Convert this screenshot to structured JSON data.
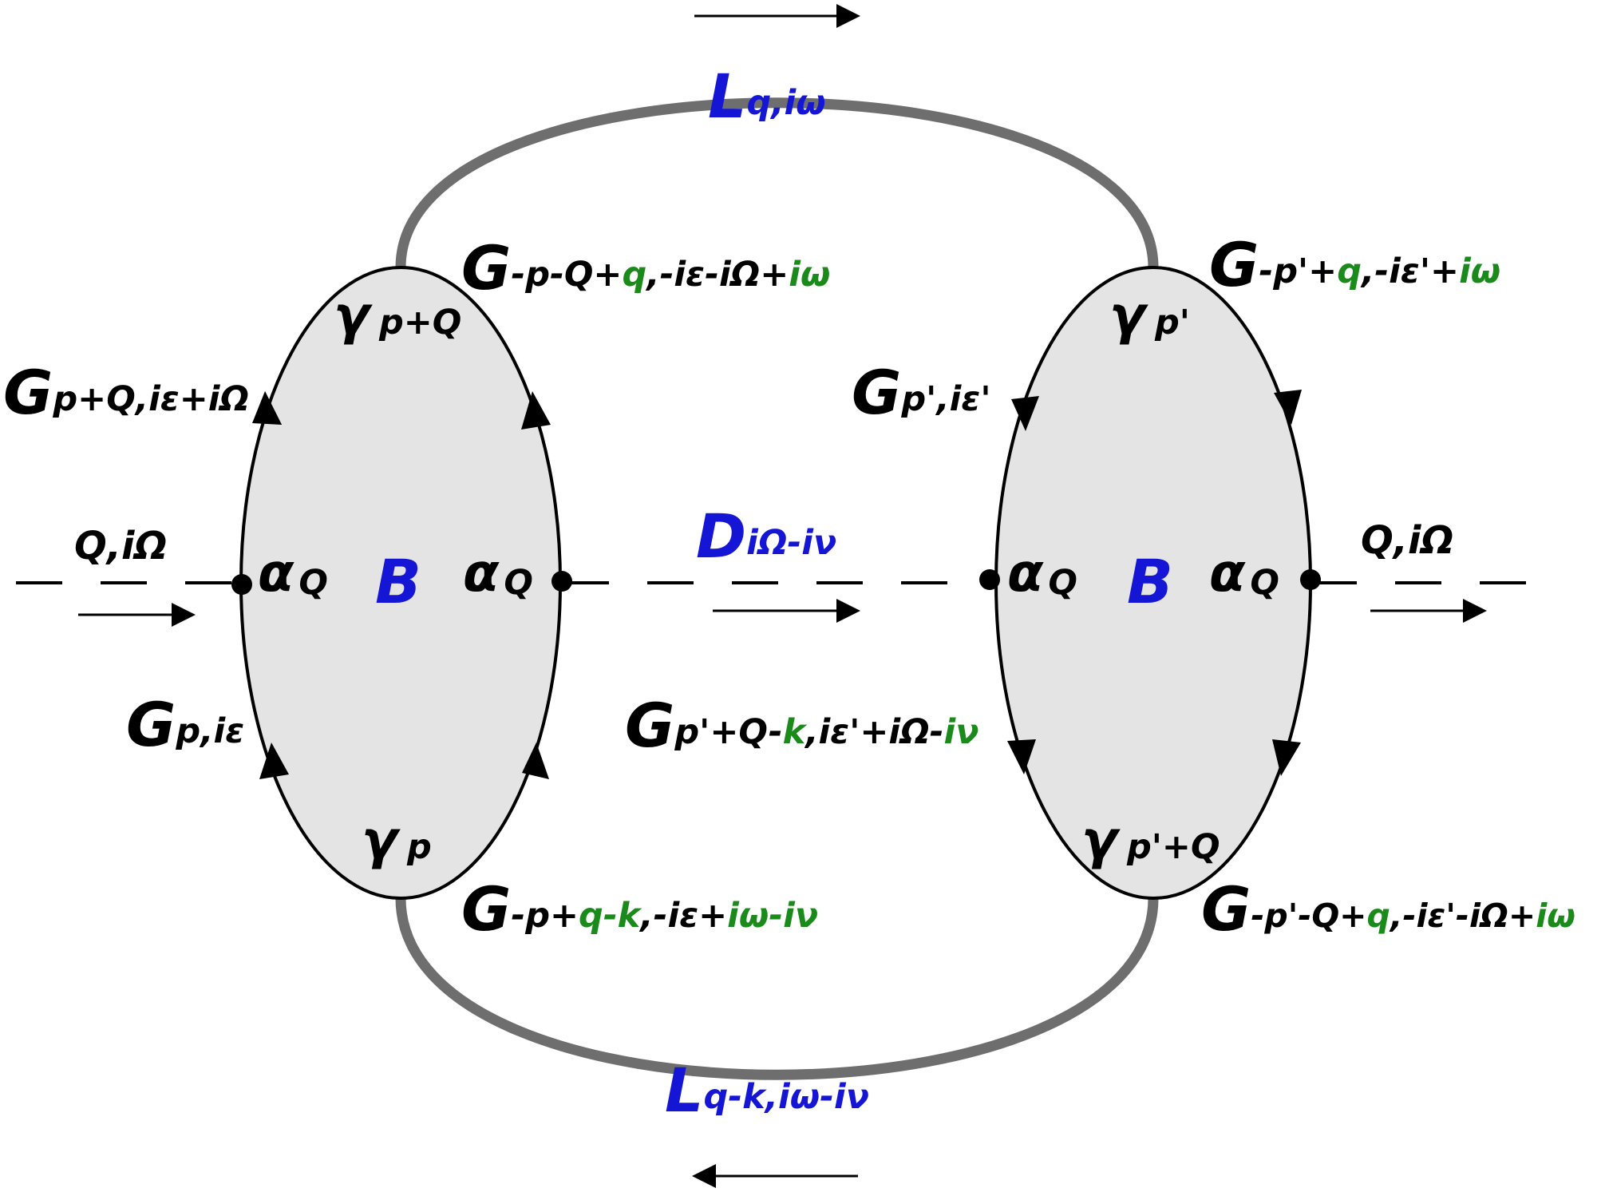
{
  "colors": {
    "black": "#000000",
    "blue": "#1515d6",
    "green": "#1a8a1a",
    "bubble_fill": "#e4e4e4",
    "thick_line": "#6e6e6e"
  },
  "labels": {
    "L_top": {
      "main": "L",
      "sub": "q,iω"
    },
    "L_bottom": {
      "main": "L",
      "sub": "q-k,iω-iν"
    },
    "D_mid": {
      "main": "D",
      "sub": "iΩ-iν"
    },
    "B_left": "B",
    "B_right": "B",
    "alpha": {
      "main": "α",
      "sub": "Q"
    },
    "gamma_left_top": {
      "main": "γ",
      "sub": "p+Q"
    },
    "gamma_left_bottom": {
      "main": "γ",
      "sub": "p"
    },
    "gamma_right_top": {
      "main": "γ",
      "sub": "p'"
    },
    "gamma_right_bottom": {
      "main": "γ",
      "sub": "p'+Q"
    },
    "q_in": "Q,iΩ",
    "q_out": "Q,iΩ",
    "G_p_plus_Q": {
      "main": "G",
      "sub": "p+Q,iε+iΩ"
    },
    "G_p": {
      "main": "G",
      "sub": "p,iε"
    },
    "G_top_left": {
      "main": "G",
      "sub_black_1": "-p-Q+",
      "sub_green_1": "q",
      "sub_black_2": ",-iε-iΩ+",
      "sub_green_2": "iω"
    },
    "G_bottom_left": {
      "main": "G",
      "sub_black_1": "-p+",
      "sub_green_1": "q-k",
      "sub_black_2": ",-iε+",
      "sub_green_2": "iω-iν"
    },
    "G_p_prime": {
      "main": "G",
      "sub": "p',iε'"
    },
    "G_p_prime_Q_k": {
      "main": "G",
      "sub_black_1": "p'+Q-",
      "sub_green_1": "k",
      "sub_black_2": ",iε'+iΩ-",
      "sub_green_2": "iν"
    },
    "G_top_right": {
      "main": "G",
      "sub_black_1": "-p'+",
      "sub_green_1": "q",
      "sub_black_2": ",-iε'+",
      "sub_green_2": "iω"
    },
    "G_bottom_right": {
      "main": "G",
      "sub_black_1": "-p'-Q+",
      "sub_green_1": "q",
      "sub_black_2": ",-iε'-iΩ+",
      "sub_green_2": "iω"
    }
  }
}
